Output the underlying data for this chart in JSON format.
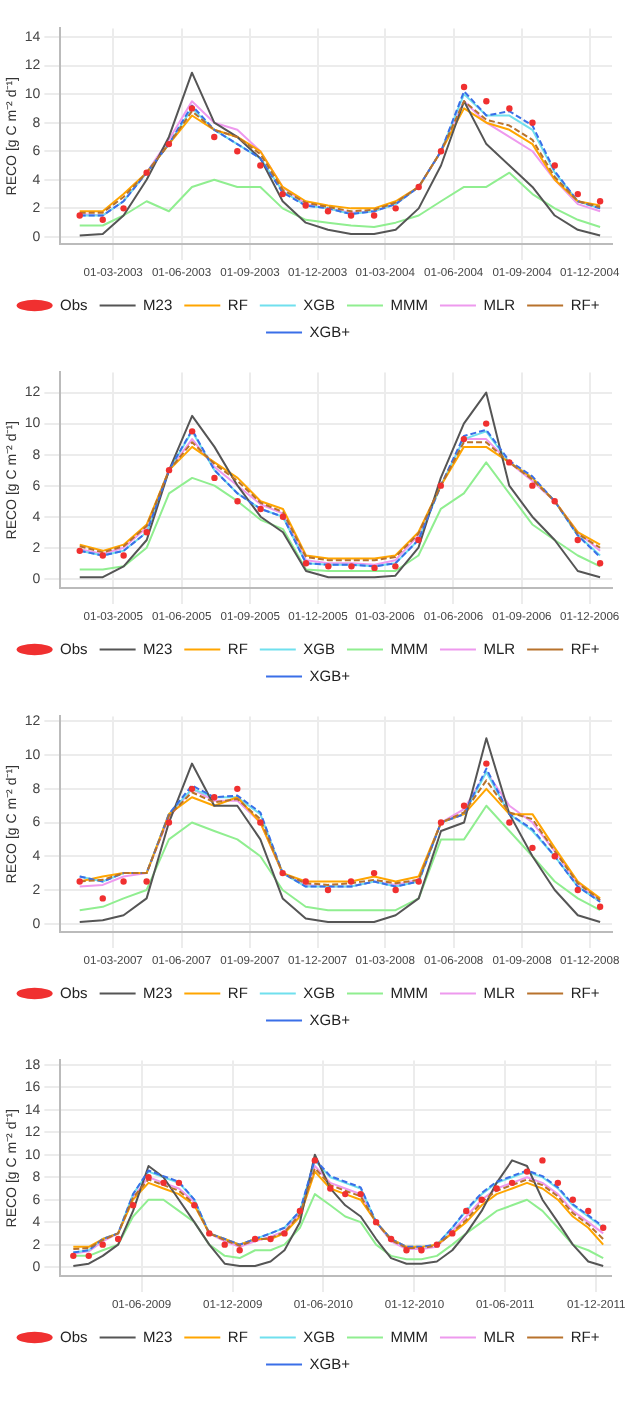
{
  "chart_data": [
    {
      "type": "line",
      "ylabel": "RECO [g C m⁻² d⁻¹]",
      "grid": true,
      "legend": "bottom",
      "x": [
        "2003-01-15",
        "2003-02-15",
        "2003-03-15",
        "2003-04-15",
        "2003-05-15",
        "2003-06-15",
        "2003-07-15",
        "2003-08-15",
        "2003-09-15",
        "2003-10-15",
        "2003-11-15",
        "2003-12-15",
        "2004-01-15",
        "2004-02-15",
        "2004-03-15",
        "2004-04-15",
        "2004-05-15",
        "2004-06-15",
        "2004-07-15",
        "2004-08-15",
        "2004-09-15",
        "2004-10-15",
        "2004-11-15",
        "2004-12-15"
      ],
      "xlim": [
        "2002-12-20",
        "2004-12-31"
      ],
      "xticks": [
        {
          "value": "2003-03-01",
          "label": "01-03-2003"
        },
        {
          "value": "2003-06-01",
          "label": "01-06-2003"
        },
        {
          "value": "2003-09-01",
          "label": "01-09-2003"
        },
        {
          "value": "2003-12-01",
          "label": "01-12-2003"
        },
        {
          "value": "2004-03-01",
          "label": "01-03-2004"
        },
        {
          "value": "2004-06-01",
          "label": "01-06-2004"
        },
        {
          "value": "2004-09-01",
          "label": "01-09-2004"
        },
        {
          "value": "2004-12-01",
          "label": "01-12-2004"
        }
      ],
      "ylim": [
        -0.5,
        14.6
      ],
      "yticks": [
        0,
        2,
        4,
        6,
        8,
        10,
        12,
        14
      ],
      "series": [
        {
          "name": "Obs",
          "type": "scatter",
          "marker": "circle",
          "color": "#f03030",
          "values": [
            1.5,
            1.2,
            2.0,
            4.5,
            6.5,
            9.0,
            7.0,
            6.0,
            5.0,
            3.0,
            2.2,
            1.8,
            1.5,
            1.5,
            2.0,
            3.5,
            6.0,
            10.5,
            9.5,
            9.0,
            8.0,
            5.0,
            3.0,
            2.5
          ]
        },
        {
          "name": "M23",
          "type": "line",
          "line_style": "solid",
          "color": "#555555",
          "values": [
            0.1,
            0.2,
            1.5,
            4.0,
            7.0,
            11.5,
            8.0,
            7.0,
            5.5,
            2.5,
            1.0,
            0.5,
            0.2,
            0.2,
            0.5,
            2.0,
            5.0,
            9.5,
            6.5,
            5.0,
            3.5,
            1.5,
            0.5,
            0.1
          ]
        },
        {
          "name": "RF",
          "type": "line",
          "line_style": "solid",
          "color": "#ffa500",
          "values": [
            1.8,
            1.8,
            3.0,
            4.5,
            6.5,
            8.5,
            7.5,
            7.0,
            6.0,
            3.5,
            2.5,
            2.2,
            2.0,
            2.0,
            2.5,
            3.5,
            6.0,
            9.0,
            8.0,
            7.5,
            6.5,
            4.0,
            2.5,
            2.2
          ]
        },
        {
          "name": "XGB",
          "type": "line",
          "line_style": "solid",
          "color": "#70e0ee",
          "values": [
            1.5,
            1.5,
            2.5,
            4.5,
            6.5,
            9.0,
            7.5,
            6.5,
            5.5,
            3.2,
            2.2,
            2.0,
            1.6,
            1.8,
            2.3,
            3.5,
            6.0,
            10.0,
            8.5,
            8.5,
            7.5,
            4.5,
            2.5,
            2.0
          ]
        },
        {
          "name": "MMM",
          "type": "line",
          "line_style": "solid",
          "color": "#90ee90",
          "values": [
            0.8,
            0.8,
            1.5,
            2.5,
            1.8,
            3.5,
            4.0,
            3.5,
            3.5,
            2.0,
            1.2,
            1.0,
            0.8,
            0.7,
            1.0,
            1.5,
            2.5,
            3.5,
            3.5,
            4.5,
            3.0,
            2.0,
            1.2,
            0.7
          ]
        },
        {
          "name": "MLR",
          "type": "line",
          "line_style": "solid",
          "color": "#ee99ee",
          "values": [
            1.6,
            1.5,
            2.5,
            4.5,
            6.8,
            9.5,
            8.0,
            7.5,
            6.0,
            3.5,
            2.3,
            2.0,
            1.7,
            1.8,
            2.3,
            3.5,
            6.0,
            9.5,
            8.0,
            7.0,
            6.0,
            4.0,
            2.3,
            1.8
          ]
        },
        {
          "name": "RF+",
          "type": "line",
          "line_style": "dashed",
          "color": "#b8722c",
          "values": [
            1.7,
            1.7,
            2.8,
            4.5,
            6.5,
            8.8,
            7.5,
            7.0,
            5.8,
            3.3,
            2.4,
            2.1,
            1.8,
            1.9,
            2.4,
            3.5,
            6.0,
            9.5,
            8.2,
            7.8,
            6.8,
            4.2,
            2.5,
            2.1
          ]
        },
        {
          "name": "XGB+",
          "type": "line",
          "line_style": "dashed",
          "color": "#3a6fe8",
          "values": [
            1.5,
            1.5,
            2.5,
            4.5,
            6.5,
            9.2,
            7.5,
            6.5,
            5.5,
            3.1,
            2.2,
            2.0,
            1.6,
            1.8,
            2.3,
            3.5,
            6.0,
            10.2,
            8.5,
            8.8,
            7.8,
            4.6,
            2.5,
            2.0
          ]
        }
      ]
    },
    {
      "type": "line",
      "ylabel": "RECO [g C m⁻² d⁻¹]",
      "grid": true,
      "legend": "bottom",
      "x": [
        "2005-01-15",
        "2005-02-15",
        "2005-03-15",
        "2005-04-15",
        "2005-05-15",
        "2005-06-15",
        "2005-07-15",
        "2005-08-15",
        "2005-09-15",
        "2005-10-15",
        "2005-11-15",
        "2005-12-15",
        "2006-01-15",
        "2006-02-15",
        "2006-03-15",
        "2006-04-15",
        "2006-05-15",
        "2006-06-15",
        "2006-07-15",
        "2006-08-15",
        "2006-09-15",
        "2006-10-15",
        "2006-11-15",
        "2006-12-15"
      ],
      "xlim": [
        "2004-12-20",
        "2006-12-31"
      ],
      "xticks": [
        {
          "value": "2005-03-01",
          "label": "01-03-2005"
        },
        {
          "value": "2005-06-01",
          "label": "01-06-2005"
        },
        {
          "value": "2005-09-01",
          "label": "01-09-2005"
        },
        {
          "value": "2005-12-01",
          "label": "01-12-2005"
        },
        {
          "value": "2006-03-01",
          "label": "01-03-2006"
        },
        {
          "value": "2006-06-01",
          "label": "01-06-2006"
        },
        {
          "value": "2006-09-01",
          "label": "01-09-2006"
        },
        {
          "value": "2006-12-01",
          "label": "01-12-2006"
        }
      ],
      "ylim": [
        -0.6,
        13.3
      ],
      "yticks": [
        0,
        2,
        4,
        6,
        8,
        10,
        12
      ],
      "series": [
        {
          "name": "Obs",
          "type": "scatter",
          "marker": "circle",
          "color": "#f03030",
          "values": [
            1.8,
            1.5,
            1.5,
            3.0,
            7.0,
            9.5,
            6.5,
            5.0,
            4.5,
            4.0,
            1.0,
            0.8,
            0.8,
            0.7,
            0.8,
            2.5,
            6.0,
            9.0,
            10.0,
            7.5,
            6.0,
            5.0,
            2.5,
            1.0
          ]
        },
        {
          "name": "M23",
          "type": "line",
          "line_style": "solid",
          "color": "#555555",
          "values": [
            0.1,
            0.1,
            0.8,
            2.5,
            7.0,
            10.5,
            8.5,
            6.0,
            4.0,
            3.0,
            0.5,
            0.1,
            0.1,
            0.1,
            0.2,
            2.0,
            6.5,
            10.0,
            12.0,
            6.0,
            4.0,
            2.5,
            0.5,
            0.1
          ]
        },
        {
          "name": "RF",
          "type": "line",
          "line_style": "solid",
          "color": "#ffa500",
          "values": [
            2.2,
            1.8,
            2.2,
            3.5,
            7.0,
            8.5,
            7.5,
            6.5,
            5.0,
            4.5,
            1.5,
            1.3,
            1.3,
            1.3,
            1.5,
            3.0,
            6.0,
            8.5,
            8.5,
            7.5,
            6.5,
            5.0,
            3.0,
            2.2
          ]
        },
        {
          "name": "XGB",
          "type": "line",
          "line_style": "solid",
          "color": "#70e0ee",
          "values": [
            1.8,
            1.5,
            1.8,
            3.0,
            7.0,
            9.5,
            7.0,
            5.5,
            4.5,
            4.0,
            1.0,
            0.9,
            0.9,
            0.8,
            1.0,
            2.5,
            6.0,
            9.0,
            9.5,
            7.5,
            6.5,
            5.0,
            2.8,
            1.5
          ]
        },
        {
          "name": "MMM",
          "type": "line",
          "line_style": "solid",
          "color": "#90ee90",
          "values": [
            0.6,
            0.6,
            0.8,
            2.0,
            5.5,
            6.5,
            6.0,
            5.0,
            3.8,
            3.2,
            0.6,
            0.5,
            0.5,
            0.5,
            0.5,
            1.5,
            4.5,
            5.5,
            7.5,
            5.5,
            3.5,
            2.5,
            1.5,
            0.8
          ]
        },
        {
          "name": "MLR",
          "type": "line",
          "line_style": "solid",
          "color": "#ee99ee",
          "values": [
            1.9,
            1.6,
            2.0,
            3.3,
            7.0,
            9.0,
            7.2,
            6.0,
            4.8,
            4.2,
            1.2,
            1.0,
            1.0,
            0.9,
            1.2,
            2.8,
            6.0,
            9.0,
            9.0,
            7.5,
            6.3,
            5.0,
            3.0,
            1.8
          ]
        },
        {
          "name": "RF+",
          "type": "line",
          "line_style": "dashed",
          "color": "#b8722c",
          "values": [
            2.1,
            1.7,
            2.1,
            3.4,
            7.0,
            8.8,
            7.4,
            6.3,
            4.9,
            4.3,
            1.4,
            1.2,
            1.2,
            1.2,
            1.4,
            2.9,
            6.0,
            8.8,
            8.8,
            7.5,
            6.4,
            5.0,
            2.9,
            2.0
          ]
        },
        {
          "name": "XGB+",
          "type": "line",
          "line_style": "dashed",
          "color": "#3a6fe8",
          "values": [
            1.8,
            1.5,
            1.8,
            3.0,
            7.0,
            9.6,
            7.0,
            5.5,
            4.5,
            4.0,
            1.0,
            0.9,
            0.9,
            0.8,
            1.0,
            2.5,
            6.0,
            9.2,
            9.6,
            7.6,
            6.6,
            5.0,
            2.8,
            1.4
          ]
        }
      ]
    },
    {
      "type": "line",
      "ylabel": "RECO [g C m⁻² d⁻¹]",
      "grid": true,
      "legend": "bottom",
      "x": [
        "2007-01-15",
        "2007-02-15",
        "2007-03-15",
        "2007-04-15",
        "2007-05-15",
        "2007-06-15",
        "2007-07-15",
        "2007-08-15",
        "2007-09-15",
        "2007-10-15",
        "2007-11-15",
        "2007-12-15",
        "2008-01-15",
        "2008-02-15",
        "2008-03-15",
        "2008-04-15",
        "2008-05-15",
        "2008-06-15",
        "2008-07-15",
        "2008-08-15",
        "2008-09-15",
        "2008-10-15",
        "2008-11-15",
        "2008-12-15"
      ],
      "xlim": [
        "2006-12-20",
        "2008-12-31"
      ],
      "xticks": [
        {
          "value": "2007-03-01",
          "label": "01-03-2007"
        },
        {
          "value": "2007-06-01",
          "label": "01-06-2007"
        },
        {
          "value": "2007-09-01",
          "label": "01-09-2007"
        },
        {
          "value": "2007-12-01",
          "label": "01-12-2007"
        },
        {
          "value": "2008-03-01",
          "label": "01-03-2008"
        },
        {
          "value": "2008-06-01",
          "label": "01-06-2008"
        },
        {
          "value": "2008-09-01",
          "label": "01-09-2008"
        },
        {
          "value": "2008-12-01",
          "label": "01-12-2008"
        }
      ],
      "ylim": [
        -0.5,
        12.3
      ],
      "yticks": [
        0,
        2,
        4,
        6,
        8,
        10,
        12
      ],
      "series": [
        {
          "name": "Obs",
          "type": "scatter",
          "marker": "circle",
          "color": "#f03030",
          "values": [
            2.5,
            1.5,
            2.5,
            2.5,
            6.0,
            8.0,
            7.5,
            8.0,
            6.0,
            3.0,
            2.5,
            2.0,
            2.5,
            3.0,
            2.0,
            2.5,
            6.0,
            7.0,
            9.5,
            6.0,
            4.5,
            4.0,
            2.0,
            1.0
          ]
        },
        {
          "name": "M23",
          "type": "line",
          "line_style": "solid",
          "color": "#555555",
          "values": [
            0.1,
            0.2,
            0.5,
            1.5,
            6.0,
            9.5,
            7.0,
            7.0,
            5.0,
            1.5,
            0.3,
            0.1,
            0.1,
            0.1,
            0.5,
            1.5,
            5.5,
            6.0,
            11.0,
            6.5,
            4.0,
            2.0,
            0.5,
            0.1
          ]
        },
        {
          "name": "RF",
          "type": "line",
          "line_style": "solid",
          "color": "#ffa500",
          "values": [
            2.5,
            2.8,
            3.0,
            3.0,
            6.5,
            7.5,
            7.0,
            7.5,
            6.0,
            3.0,
            2.5,
            2.5,
            2.5,
            2.8,
            2.5,
            2.8,
            6.0,
            6.5,
            8.0,
            6.5,
            6.5,
            4.5,
            2.5,
            1.5
          ]
        },
        {
          "name": "XGB",
          "type": "line",
          "line_style": "solid",
          "color": "#70e0ee",
          "values": [
            2.8,
            2.5,
            3.0,
            3.0,
            6.5,
            8.0,
            7.5,
            7.5,
            6.5,
            3.0,
            2.2,
            2.2,
            2.2,
            2.5,
            2.2,
            2.5,
            6.0,
            6.5,
            9.0,
            6.5,
            5.5,
            4.0,
            2.2,
            1.3
          ]
        },
        {
          "name": "MMM",
          "type": "line",
          "line_style": "solid",
          "color": "#90ee90",
          "values": [
            0.8,
            1.0,
            1.5,
            2.0,
            5.0,
            6.0,
            5.5,
            5.0,
            4.0,
            2.0,
            1.0,
            0.8,
            0.8,
            0.8,
            0.8,
            1.5,
            5.0,
            5.0,
            7.0,
            5.5,
            4.0,
            2.5,
            1.5,
            0.8
          ]
        },
        {
          "name": "MLR",
          "type": "line",
          "line_style": "solid",
          "color": "#ee99ee",
          "values": [
            2.2,
            2.3,
            2.8,
            3.0,
            6.3,
            8.0,
            7.3,
            7.3,
            6.0,
            3.0,
            2.3,
            2.2,
            2.2,
            2.5,
            2.3,
            2.6,
            6.0,
            6.8,
            9.0,
            7.0,
            6.0,
            4.3,
            2.4,
            1.4
          ]
        },
        {
          "name": "RF+",
          "type": "line",
          "line_style": "dashed",
          "color": "#b8722c",
          "values": [
            2.5,
            2.6,
            3.0,
            3.0,
            6.4,
            7.8,
            7.2,
            7.4,
            6.2,
            3.0,
            2.4,
            2.3,
            2.4,
            2.6,
            2.4,
            2.6,
            6.0,
            6.6,
            8.5,
            6.6,
            6.2,
            4.3,
            2.4,
            1.4
          ]
        },
        {
          "name": "XGB+",
          "type": "line",
          "line_style": "dashed",
          "color": "#3a6fe8",
          "values": [
            2.8,
            2.5,
            3.0,
            3.0,
            6.5,
            8.2,
            7.5,
            7.6,
            6.6,
            3.0,
            2.2,
            2.2,
            2.2,
            2.5,
            2.2,
            2.5,
            6.0,
            6.5,
            9.2,
            6.5,
            5.6,
            4.0,
            2.2,
            1.3
          ]
        }
      ]
    },
    {
      "type": "line",
      "ylabel": "RECO [g C m⁻² d⁻¹]",
      "grid": true,
      "legend": "bottom",
      "x": [
        "2009-01-15",
        "2009-02-15",
        "2009-03-15",
        "2009-04-15",
        "2009-05-15",
        "2009-06-15",
        "2009-07-15",
        "2009-08-15",
        "2009-09-15",
        "2009-10-15",
        "2009-11-15",
        "2009-12-15",
        "2010-01-15",
        "2010-02-15",
        "2010-03-15",
        "2010-04-15",
        "2010-05-15",
        "2010-06-15",
        "2010-07-15",
        "2010-08-15",
        "2010-09-15",
        "2010-10-15",
        "2010-11-15",
        "2010-12-15",
        "2011-01-15",
        "2011-02-15",
        "2011-03-15",
        "2011-04-15",
        "2011-05-15",
        "2011-06-15",
        "2011-07-15",
        "2011-08-15",
        "2011-09-15",
        "2011-10-15",
        "2011-11-15",
        "2011-12-15"
      ],
      "xlim": [
        "2008-12-20",
        "2011-12-31"
      ],
      "xticks": [
        {
          "value": "2009-06-01",
          "label": "01-06-2009"
        },
        {
          "value": "2009-12-01",
          "label": "01-12-2009"
        },
        {
          "value": "2010-06-01",
          "label": "01-06-2010"
        },
        {
          "value": "2010-12-01",
          "label": "01-12-2010"
        },
        {
          "value": "2011-06-01",
          "label": "01-06-2011"
        },
        {
          "value": "2011-12-01",
          "label": "01-12-2011"
        }
      ],
      "ylim": [
        -0.8,
        18.4
      ],
      "yticks": [
        0,
        2,
        4,
        6,
        8,
        10,
        12,
        14,
        16,
        18
      ],
      "series": [
        {
          "name": "Obs",
          "type": "scatter",
          "marker": "circle",
          "color": "#f03030",
          "values": [
            1.0,
            1.0,
            2.0,
            2.5,
            5.5,
            8.0,
            7.5,
            7.5,
            5.5,
            3.0,
            2.0,
            1.5,
            2.5,
            2.5,
            3.0,
            5.0,
            9.5,
            7.0,
            6.5,
            6.5,
            4.0,
            2.5,
            1.5,
            1.5,
            2.0,
            3.0,
            5.0,
            6.0,
            7.0,
            7.5,
            8.5,
            9.5,
            7.5,
            6.0,
            5.0,
            3.5
          ]
        },
        {
          "name": "M23",
          "type": "line",
          "line_style": "solid",
          "color": "#555555",
          "values": [
            0.1,
            0.3,
            1.0,
            2.0,
            5.0,
            9.0,
            8.0,
            6.0,
            4.0,
            2.0,
            0.3,
            0.1,
            0.1,
            0.5,
            1.5,
            4.0,
            10.0,
            7.0,
            5.5,
            4.5,
            2.5,
            0.8,
            0.3,
            0.3,
            0.5,
            1.5,
            3.0,
            5.0,
            7.5,
            9.5,
            9.0,
            6.0,
            4.0,
            2.0,
            0.5,
            0.1
          ]
        },
        {
          "name": "RF",
          "type": "line",
          "line_style": "solid",
          "color": "#ffa500",
          "values": [
            1.8,
            1.8,
            2.5,
            3.0,
            6.0,
            7.5,
            7.0,
            6.5,
            5.5,
            3.0,
            2.5,
            2.0,
            2.5,
            2.5,
            3.0,
            4.5,
            8.5,
            7.0,
            6.5,
            6.0,
            4.0,
            2.5,
            1.8,
            1.8,
            2.0,
            3.0,
            4.0,
            5.5,
            6.5,
            7.0,
            7.5,
            7.0,
            6.0,
            4.5,
            3.5,
            2.0
          ]
        },
        {
          "name": "XGB",
          "type": "line",
          "line_style": "solid",
          "color": "#70e0ee",
          "values": [
            1.3,
            1.5,
            2.5,
            3.0,
            6.5,
            8.5,
            8.0,
            7.5,
            6.0,
            3.0,
            2.5,
            2.0,
            2.5,
            3.0,
            3.5,
            5.0,
            9.5,
            8.0,
            7.5,
            7.0,
            4.0,
            2.5,
            1.8,
            1.8,
            2.0,
            3.5,
            5.0,
            6.5,
            7.5,
            8.0,
            8.5,
            8.0,
            7.0,
            5.5,
            4.5,
            3.5
          ]
        },
        {
          "name": "MMM",
          "type": "line",
          "line_style": "solid",
          "color": "#90ee90",
          "values": [
            1.0,
            1.0,
            1.5,
            2.0,
            4.5,
            6.0,
            6.0,
            5.0,
            4.0,
            2.0,
            1.0,
            0.8,
            1.5,
            1.5,
            2.0,
            3.5,
            6.5,
            5.5,
            4.5,
            4.0,
            2.0,
            1.0,
            0.7,
            0.7,
            1.0,
            2.0,
            3.0,
            4.0,
            5.0,
            5.5,
            6.0,
            5.0,
            3.5,
            2.0,
            1.5,
            0.8
          ]
        },
        {
          "name": "MLR",
          "type": "line",
          "line_style": "solid",
          "color": "#ee99ee",
          "values": [
            1.2,
            1.4,
            2.3,
            3.0,
            6.2,
            8.0,
            7.5,
            7.0,
            5.8,
            3.0,
            2.3,
            1.8,
            2.3,
            2.7,
            3.2,
            4.8,
            9.0,
            7.5,
            7.0,
            6.5,
            4.0,
            2.3,
            1.6,
            1.6,
            1.8,
            3.2,
            4.5,
            6.0,
            7.0,
            7.5,
            8.0,
            7.5,
            6.5,
            5.0,
            4.0,
            3.0
          ]
        },
        {
          "name": "RF+",
          "type": "line",
          "line_style": "dashed",
          "color": "#b8722c",
          "values": [
            1.6,
            1.7,
            2.4,
            3.0,
            6.2,
            7.8,
            7.3,
            6.8,
            5.6,
            3.0,
            2.4,
            1.9,
            2.4,
            2.6,
            3.1,
            4.7,
            8.8,
            7.3,
            6.8,
            6.3,
            4.0,
            2.4,
            1.7,
            1.7,
            1.9,
            3.1,
            4.2,
            5.8,
            6.8,
            7.3,
            7.8,
            7.3,
            6.3,
            4.8,
            3.8,
            2.5
          ]
        },
        {
          "name": "XGB+",
          "type": "line",
          "line_style": "dashed",
          "color": "#3a6fe8",
          "values": [
            1.3,
            1.5,
            2.5,
            3.0,
            6.5,
            8.6,
            8.1,
            7.6,
            6.0,
            3.0,
            2.5,
            2.0,
            2.5,
            3.0,
            3.5,
            5.0,
            9.6,
            8.1,
            7.6,
            7.1,
            4.0,
            2.5,
            1.8,
            1.8,
            2.0,
            3.5,
            5.1,
            6.6,
            7.6,
            8.1,
            8.6,
            8.1,
            7.1,
            5.6,
            4.6,
            3.6
          ]
        }
      ]
    }
  ]
}
